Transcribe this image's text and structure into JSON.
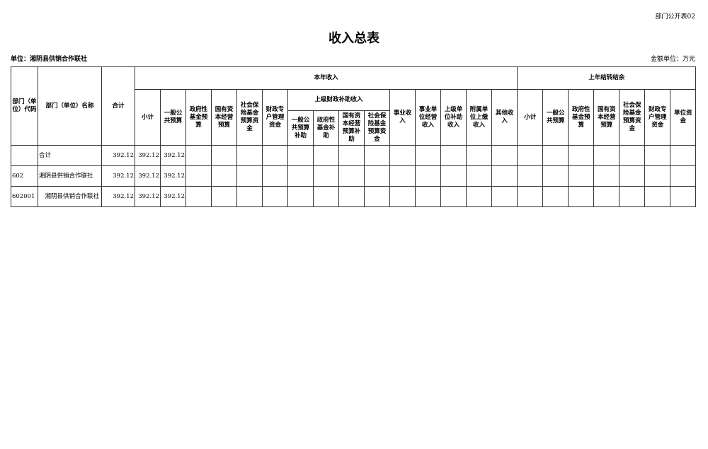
{
  "form_code": "部门公开表02",
  "title": "收入总表",
  "unit_label": "单位：湘阴县供销合作联社",
  "money_unit": "金额单位：万元",
  "headers": {
    "code": "部门（单位）代码",
    "name": "部门（单位）名称",
    "total": "合计",
    "current_year": "本年收入",
    "prior_year": "上年结转结余",
    "current": {
      "subtotal": "小计",
      "general": "一般公共预算",
      "gov_fund": "政府性基金预算",
      "state_capital": "国有资本经营预算",
      "social_insurance": "社会保险基金预算资金",
      "fiscal_account": "财政专户管理资金",
      "upper_subsidy": "上级财政补助收入",
      "upper": [
        "一般公共预算补助",
        "政府性基金补助",
        "国有资本经营预算补助",
        "社会保险基金预算资金"
      ],
      "business": "事业收入",
      "business_ops": "事业单位经营收入",
      "upper_unit": "上级单位补助收入",
      "affiliated": "附属单位上缴收入",
      "other": "其他收入"
    },
    "prior": [
      "小计",
      "一般公共预算",
      "政府性基金预算",
      "国有资本经营预算",
      "社会保险基金预算资金",
      "财政专户管理资金",
      "单位资金"
    ]
  },
  "rows": [
    {
      "code": "",
      "name": "合计",
      "total": "392.12",
      "subtotal": "392.12",
      "general": "392.12"
    },
    {
      "code": "602",
      "name": "湘阴县供销合作联社",
      "total": "392.12",
      "subtotal": "392.12",
      "general": "392.12"
    },
    {
      "code": "602001",
      "name": "　湘阴县供销合作联社",
      "total": "392.12",
      "subtotal": "392.12",
      "general": "392.12"
    }
  ]
}
